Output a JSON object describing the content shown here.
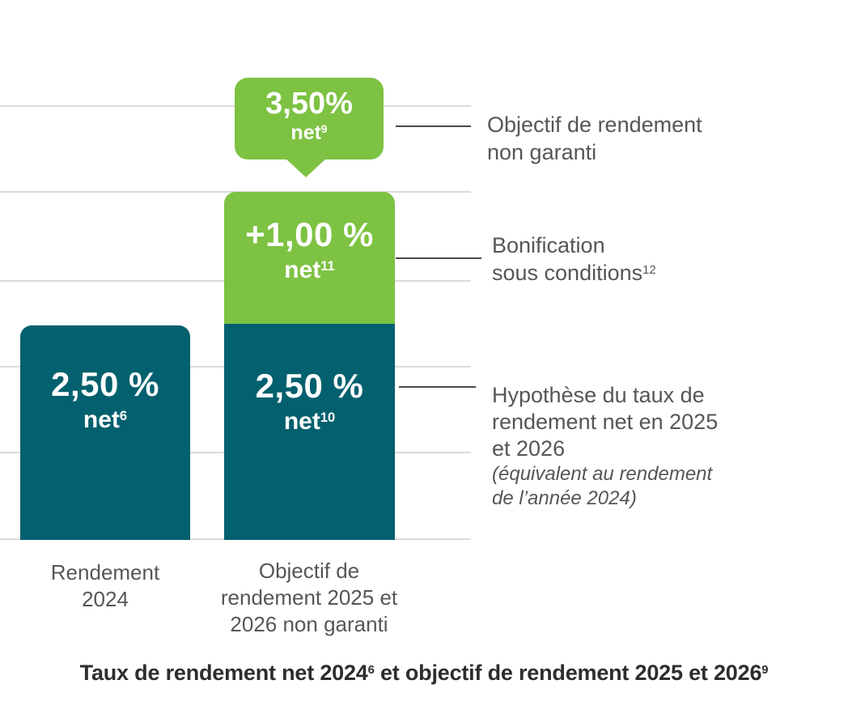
{
  "callout": {
    "value": "3,50%",
    "unit": "net",
    "unit_sup": "9"
  },
  "bars": {
    "left": {
      "value": "2,50 %",
      "unit": "net",
      "unit_sup": "6"
    },
    "right": {
      "bonus": {
        "value": "+1,00 %",
        "unit": "net",
        "unit_sup": "11"
      },
      "base": {
        "value": "2,50 %",
        "unit": "net",
        "unit_sup": "10"
      }
    }
  },
  "axis_labels": {
    "left": {
      "line1": "Rendement",
      "line2": "2024"
    },
    "right": {
      "line1": "Objectif de",
      "line2": "rendement 2025 et",
      "line3": "2026 non garanti"
    }
  },
  "annotations": [
    {
      "line1": "Objectif de rendement",
      "line2": "non garanti"
    },
    {
      "line1": "Bonification",
      "line2": "sous conditions",
      "sup": "12"
    },
    {
      "line1": "Hypothèse du taux de",
      "line2": "rendement net en 2025",
      "line3": "et 2026",
      "italic1": "(équivalent au rendement",
      "italic2": "de l’année 2024)"
    }
  ],
  "title": {
    "part1": "Taux de rendement net 2024",
    "sup1": "6",
    "part2": " et objectif de rendement 2025 et 2026",
    "sup2": "9"
  },
  "colors": {
    "teal": "#03606E",
    "green": "#7DC242",
    "gridline": "#DBDBDB",
    "connector": "#4A4A4B",
    "text_gray": "#55565A",
    "title_text": "#2D2D2D",
    "bar_label_text": "#FFFFFF"
  },
  "chart_data": {
    "type": "bar",
    "stacked": true,
    "title": "Taux de rendement net 2024⁶ et objectif de rendement 2025 et 2026⁹",
    "categories": [
      "Rendement 2024",
      "Objectif de rendement 2025 et 2026 non garanti"
    ],
    "series": [
      {
        "name": "Hypothèse du taux de rendement net (équivalent au rendement de l’année 2024)",
        "values": [
          2.5,
          2.5
        ],
        "color": "#03606E",
        "data_labels": [
          "2,50 % net⁶",
          "2,50 % net¹⁰"
        ]
      },
      {
        "name": "Bonification sous conditions¹²",
        "values": [
          0,
          1.0
        ],
        "color": "#7DC242",
        "data_labels": [
          null,
          "+1,00 % net¹¹"
        ]
      }
    ],
    "totals": [
      2.5,
      3.5
    ],
    "total_callout": {
      "category": "Objectif de rendement 2025 et 2026 non garanti",
      "label": "3,50% net⁹"
    },
    "annotations": [
      "Objectif de rendement non garanti",
      "Bonification sous conditions¹²",
      "Hypothèse du taux de rendement net en 2025 et 2026 (équivalent au rendement de l’année 2024)"
    ],
    "unit": "%",
    "grid": true,
    "legend": false
  }
}
